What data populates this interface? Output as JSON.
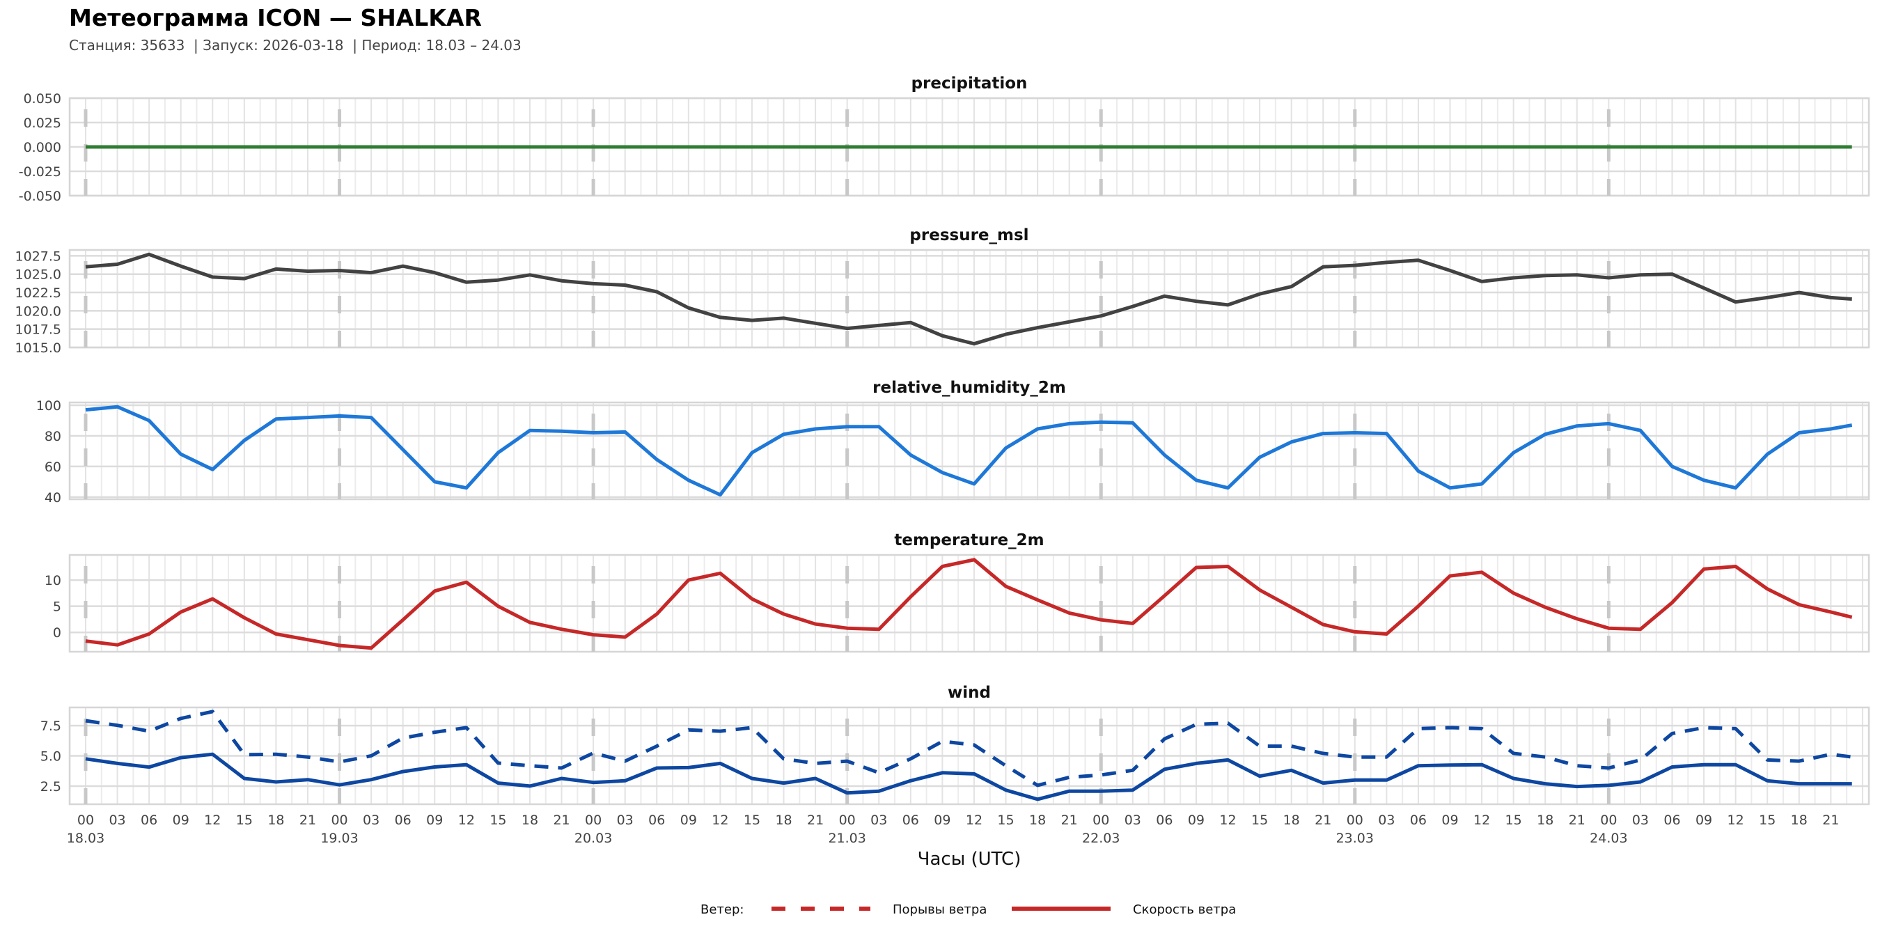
{
  "header": {
    "title": "Метеограмма ICON — SHALKAR",
    "subtitle": "Станция: 35633  | Запуск: 2026-03-18  | Период: 18.03 – 24.03"
  },
  "legend": {
    "title": "Ветер:",
    "gust_label": "Порывы ветра",
    "speed_label": "Скорость ветра",
    "color": "#c62828"
  },
  "chart_data": {
    "type": "line",
    "xlabel": "Часы (UTC)",
    "x_hours": [
      0,
      3,
      6,
      9,
      12,
      15,
      18,
      21,
      24,
      27,
      30,
      33,
      36,
      39,
      42,
      45,
      48,
      51,
      54,
      57,
      60,
      63,
      66,
      69,
      72,
      75,
      78,
      81,
      84,
      87,
      90,
      93,
      96,
      99,
      102,
      105,
      108,
      111,
      114,
      117,
      120,
      123,
      126,
      129,
      132,
      135,
      138,
      141,
      144,
      147,
      150,
      153,
      156,
      159,
      162,
      165,
      167
    ],
    "hour_tick_labels": [
      "00",
      "03",
      "06",
      "09",
      "12",
      "15",
      "18",
      "21",
      "00",
      "03",
      "06",
      "09",
      "12",
      "15",
      "18",
      "21",
      "00",
      "03",
      "06",
      "09",
      "12",
      "15",
      "18",
      "21",
      "00",
      "03",
      "06",
      "09",
      "12",
      "15",
      "18",
      "21",
      "00",
      "03",
      "06",
      "09",
      "12",
      "15",
      "18",
      "21",
      "00",
      "03",
      "06",
      "09",
      "12",
      "15",
      "18",
      "21",
      "00",
      "03",
      "06",
      "09",
      "12",
      "15",
      "18",
      "21"
    ],
    "date_labels": [
      "18.03",
      "19.03",
      "20.03",
      "21.03",
      "22.03",
      "23.03",
      "24.03"
    ],
    "grid": true,
    "panels": [
      {
        "title": "precipitation",
        "ylim": [
          -0.05,
          0.05
        ],
        "yticks": [
          -0.05,
          -0.025,
          0,
          0.025,
          0.05
        ],
        "ytick_labels": [
          "-0.050",
          "-0.025",
          "0.000",
          "0.025",
          "0.050"
        ],
        "series": [
          {
            "name": "precipitation",
            "color": "#2e7d32",
            "style": "solid",
            "values": [
              0,
              0,
              0,
              0,
              0,
              0,
              0,
              0,
              0,
              0,
              0,
              0,
              0,
              0,
              0,
              0,
              0,
              0,
              0,
              0,
              0,
              0,
              0,
              0,
              0,
              0,
              0,
              0,
              0,
              0,
              0,
              0,
              0,
              0,
              0,
              0,
              0,
              0,
              0,
              0,
              0,
              0,
              0,
              0,
              0,
              0,
              0,
              0,
              0,
              0,
              0,
              0,
              0,
              0,
              0,
              0,
              0
            ]
          }
        ]
      },
      {
        "title": "pressure_msl",
        "ylim": [
          1015.0,
          1028.3
        ],
        "yticks": [
          1015,
          1017.5,
          1020,
          1022.5,
          1025,
          1027.5
        ],
        "ytick_labels": [
          "1015.0",
          "1017.5",
          "1020.0",
          "1022.5",
          "1025.0",
          "1027.5"
        ],
        "series": [
          {
            "name": "pressure_msl",
            "color": "#424242",
            "style": "solid",
            "values": [
              1026.0,
              1026.35,
              1027.7,
              1026.1,
              1024.6,
              1024.4,
              1025.7,
              1025.4,
              1025.5,
              1025.2,
              1026.1,
              1025.2,
              1023.9,
              1024.2,
              1024.9,
              1024.1,
              1023.7,
              1023.5,
              1022.6,
              1020.4,
              1019.1,
              1018.7,
              1019.0,
              1018.3,
              1017.6,
              1018.0,
              1018.4,
              1016.6,
              1015.5,
              1016.8,
              1017.7,
              1018.5,
              1019.3,
              1020.6,
              1022.0,
              1021.3,
              1020.8,
              1022.3,
              1023.3,
              1026.0,
              1026.2,
              1026.6,
              1026.9,
              1025.5,
              1024.0,
              1024.5,
              1024.8,
              1024.9,
              1024.5,
              1024.9,
              1025.0,
              1023.1,
              1021.2,
              1021.8,
              1022.5,
              1021.8,
              1021.6
            ]
          }
        ]
      },
      {
        "title": "relative_humidity_2m",
        "ylim": [
          38.6,
          101.8
        ],
        "yticks": [
          40,
          60,
          80,
          100
        ],
        "ytick_labels": [
          "40",
          "60",
          "80",
          "100"
        ],
        "series": [
          {
            "name": "relative_humidity_2m",
            "color": "#1e78d8",
            "style": "solid",
            "values": [
              97,
              99,
              90,
              68,
              58,
              77,
              91,
              92,
              93,
              92,
              71,
              50,
              46,
              69,
              83.5,
              83,
              82,
              82.5,
              64.5,
              51,
              41.5,
              69,
              81,
              84.5,
              86,
              86,
              67.5,
              56,
              48.6,
              72,
              84.5,
              88,
              89,
              88.5,
              67.5,
              51,
              46,
              66,
              76,
              81.5,
              82,
              81.5,
              57,
              46,
              48.6,
              69,
              81,
              86.5,
              88,
              83.5,
              60,
              51,
              46,
              68,
              82,
              84.5,
              87
            ]
          }
        ]
      },
      {
        "title": "temperature_2m",
        "ylim": [
          -3.7,
          14.8
        ],
        "yticks": [
          0,
          5,
          10
        ],
        "ytick_labels": [
          "0",
          "5",
          "10"
        ],
        "series": [
          {
            "name": "temperature_2m",
            "color": "#c62828",
            "style": "solid",
            "values": [
              -1.65,
              -2.4,
              -0.3,
              3.9,
              6.4,
              2.8,
              -0.3,
              -1.4,
              -2.5,
              -3.0,
              2.4,
              7.9,
              9.6,
              5.0,
              1.9,
              0.6,
              -0.45,
              -0.9,
              3.5,
              10.0,
              11.3,
              6.4,
              3.5,
              1.6,
              0.8,
              0.6,
              6.8,
              12.6,
              13.9,
              8.8,
              6.2,
              3.7,
              2.4,
              1.7,
              7.0,
              12.4,
              12.6,
              8.1,
              4.8,
              1.5,
              0.1,
              -0.3,
              5.0,
              10.8,
              11.5,
              7.5,
              4.8,
              2.6,
              0.8,
              0.6,
              5.7,
              12.1,
              12.6,
              8.3,
              5.3,
              3.9,
              2.9
            ]
          }
        ]
      },
      {
        "title": "wind",
        "ylim": [
          1.0,
          9.0
        ],
        "yticks": [
          2.5,
          5.0,
          7.5
        ],
        "ytick_labels": [
          "2.5",
          "5.0",
          "7.5"
        ],
        "series": [
          {
            "name": "Порывы ветра",
            "color": "#0d47a1",
            "style": "dashed",
            "values": [
              7.9,
              7.52,
              7.04,
              8.09,
              8.66,
              5.1,
              5.13,
              4.9,
              4.5,
              5.0,
              6.47,
              6.95,
              7.33,
              4.4,
              4.18,
              3.99,
              5.23,
              4.56,
              5.8,
              7.14,
              7.04,
              7.33,
              4.75,
              4.37,
              4.56,
              3.6,
              4.75,
              6.2,
              5.9,
              4.18,
              2.56,
              3.23,
              3.42,
              3.8,
              6.4,
              7.6,
              7.7,
              5.8,
              5.8,
              5.2,
              4.9,
              4.9,
              7.25,
              7.33,
              7.25,
              5.2,
              4.9,
              4.18,
              3.99,
              4.66,
              6.85,
              7.33,
              7.25,
              4.66,
              4.56,
              5.13,
              4.9
            ]
          },
          {
            "name": "Скорость ветра",
            "color": "#0d47a1",
            "style": "solid",
            "values": [
              4.75,
              4.37,
              4.07,
              4.85,
              5.13,
              3.13,
              2.84,
              3.03,
              2.6,
              3.03,
              3.7,
              4.08,
              4.27,
              2.75,
              2.5,
              3.13,
              2.8,
              2.94,
              3.99,
              4.03,
              4.37,
              3.13,
              2.75,
              3.13,
              1.93,
              2.08,
              2.94,
              3.6,
              3.51,
              2.17,
              1.41,
              2.08,
              2.08,
              2.17,
              3.89,
              4.37,
              4.66,
              3.32,
              3.8,
              2.75,
              3.0,
              3.0,
              4.18,
              4.24,
              4.27,
              3.13,
              2.69,
              2.46,
              2.56,
              2.84,
              4.08,
              4.27,
              4.27,
              2.94,
              2.69,
              2.69,
              2.69
            ]
          }
        ]
      }
    ]
  }
}
